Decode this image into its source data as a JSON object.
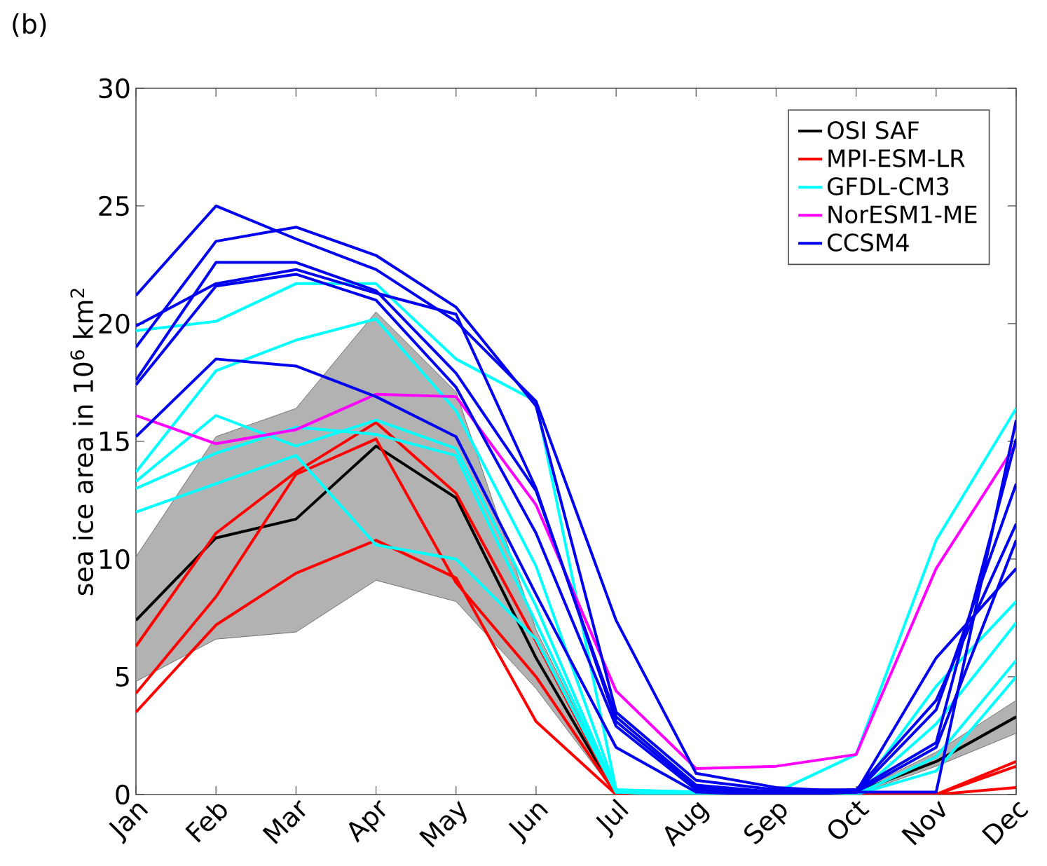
{
  "chart_data": {
    "type": "line",
    "ylabel": "sea ice area in 10$^{6}$ km$^{2}$",
    "annotations": [
      "(b)"
    ],
    "categories": [
      "Jan",
      "Feb",
      "Mar",
      "Apr",
      "May",
      "Jun",
      "Jul",
      "Aug",
      "Sep",
      "Oct",
      "Nov",
      "Dec"
    ],
    "ylim": [
      0,
      30
    ],
    "yticks": [
      0,
      5,
      10,
      15,
      20,
      25,
      30
    ],
    "grid": false,
    "legend": "top right",
    "marker": "none",
    "line_style": "solid",
    "series": [
      {
        "name": "OSI SAF",
        "color": "#000000",
        "values": [
          7.4,
          10.9,
          11.7,
          14.8,
          12.6,
          5.8,
          0,
          0,
          0,
          0.1,
          1.4,
          3.3
        ],
        "lower": [
          4.8,
          6.6,
          6.9,
          9.1,
          8.2,
          4.5,
          0,
          0,
          0,
          0,
          1.2,
          2.6
        ],
        "upper": [
          10.1,
          15.2,
          16.4,
          20.5,
          17.1,
          7.0,
          0.1,
          0,
          0,
          0.1,
          1.8,
          4.0
        ]
      },
      {
        "name": "MPI-ESM-LR",
        "color": "#ff0000",
        "values": [
          6.3,
          11.1,
          13.7,
          15.8,
          12.8,
          6.5,
          0,
          0,
          0,
          0,
          0,
          1.4
        ]
      },
      {
        "color": "#ff0000",
        "values": [
          4.3,
          8.4,
          13.6,
          15.1,
          9.0,
          5.0,
          0,
          0,
          0,
          0,
          0,
          1.2
        ]
      },
      {
        "color": "#ff0000",
        "values": [
          3.5,
          7.2,
          9.4,
          10.8,
          9.2,
          3.1,
          0,
          0,
          0,
          0,
          0,
          0.3
        ]
      },
      {
        "name": "GFDL-CM3",
        "color": "#00ffff",
        "values": [
          19.7,
          20.1,
          21.7,
          21.7,
          18.5,
          16.7,
          0.2,
          0.1,
          0.1,
          1.7,
          10.8,
          16.4
        ]
      },
      {
        "color": "#00ffff",
        "values": [
          13.7,
          18.0,
          19.3,
          20.2,
          16.3,
          9.7,
          0.2,
          0.1,
          0,
          0,
          4.6,
          8.2
        ]
      },
      {
        "color": "#00ffff",
        "values": [
          13.3,
          16.1,
          14.8,
          15.9,
          14.7,
          8.0,
          0.1,
          0,
          0,
          0,
          3.0,
          7.3
        ]
      },
      {
        "color": "#00ffff",
        "values": [
          13.0,
          14.5,
          15.6,
          15.3,
          14.4,
          7.3,
          0.1,
          0,
          0,
          0,
          1.6,
          5.7
        ]
      },
      {
        "color": "#00ffff",
        "values": [
          12.0,
          13.2,
          14.4,
          10.6,
          10.0,
          6.6,
          0.1,
          0,
          0,
          0,
          1.0,
          5.0
        ]
      },
      {
        "name": "NorESM1-ME",
        "color": "#ff00ff",
        "values": [
          16.1,
          14.9,
          15.5,
          17.0,
          16.9,
          12.3,
          4.4,
          1.1,
          1.2,
          1.7,
          9.6,
          14.9
        ]
      },
      {
        "name": "CCSM4",
        "color": "#0000ee",
        "values": [
          21.2,
          25.0,
          23.6,
          22.3,
          20.1,
          16.7,
          7.4,
          0.9,
          0.3,
          0.1,
          0.1,
          15.9
        ]
      },
      {
        "color": "#0000ee",
        "values": [
          19.0,
          23.5,
          24.1,
          22.9,
          20.7,
          16.5,
          3.5,
          0.6,
          0.2,
          0.2,
          2.2,
          15.1
        ]
      },
      {
        "color": "#0000ee",
        "values": [
          17.6,
          22.6,
          22.6,
          21.4,
          17.9,
          12.9,
          3.3,
          0.4,
          0.1,
          0.1,
          3.6,
          13.2
        ]
      },
      {
        "color": "#0000ee",
        "values": [
          19.9,
          21.7,
          22.3,
          21.3,
          20.4,
          13.0,
          3.1,
          0.3,
          0.1,
          0.2,
          4.0,
          11.5
        ]
      },
      {
        "color": "#0000ee",
        "values": [
          17.4,
          21.6,
          22.1,
          21.0,
          17.3,
          11.1,
          2.9,
          0.2,
          0,
          0.1,
          5.8,
          9.6
        ]
      },
      {
        "color": "#0000ee",
        "values": [
          15.2,
          18.5,
          18.2,
          16.9,
          15.2,
          8.5,
          2.0,
          0.1,
          0,
          0.1,
          2.0,
          10.8
        ]
      }
    ]
  }
}
